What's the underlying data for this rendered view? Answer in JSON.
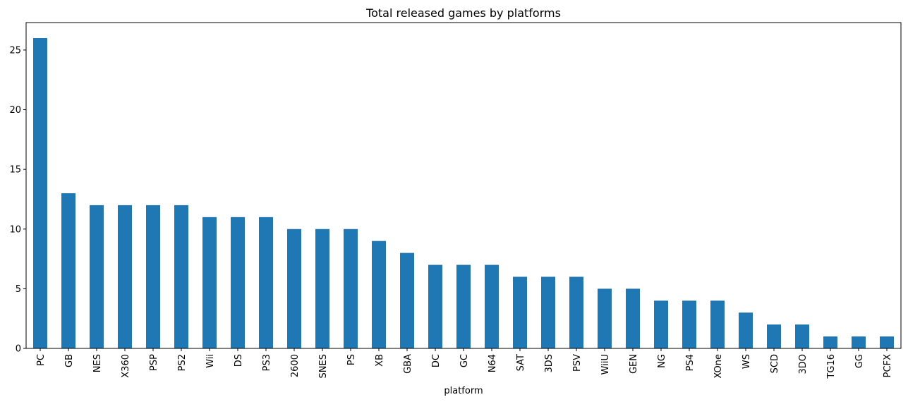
{
  "chart_data": {
    "type": "bar",
    "title": "Total released games by platforms",
    "xlabel": "platform",
    "ylabel": "",
    "categories": [
      "PC",
      "GB",
      "NES",
      "X360",
      "PSP",
      "PS2",
      "Wii",
      "DS",
      "PS3",
      "2600",
      "SNES",
      "PS",
      "XB",
      "GBA",
      "DC",
      "GC",
      "N64",
      "SAT",
      "3DS",
      "PSV",
      "WiiU",
      "GEN",
      "NG",
      "PS4",
      "XOne",
      "WS",
      "SCD",
      "3DO",
      "TG16",
      "GG",
      "PCFX"
    ],
    "values": [
      26,
      13,
      12,
      12,
      12,
      12,
      11,
      11,
      11,
      10,
      10,
      10,
      9,
      8,
      7,
      7,
      7,
      6,
      6,
      6,
      5,
      5,
      4,
      4,
      4,
      3,
      2,
      2,
      1,
      1,
      1
    ],
    "ylim": [
      0,
      27.3
    ],
    "yticks": [
      0,
      5,
      10,
      15,
      20,
      25
    ],
    "bar_color": "#1f77b4",
    "grid": false,
    "legend": "none"
  }
}
